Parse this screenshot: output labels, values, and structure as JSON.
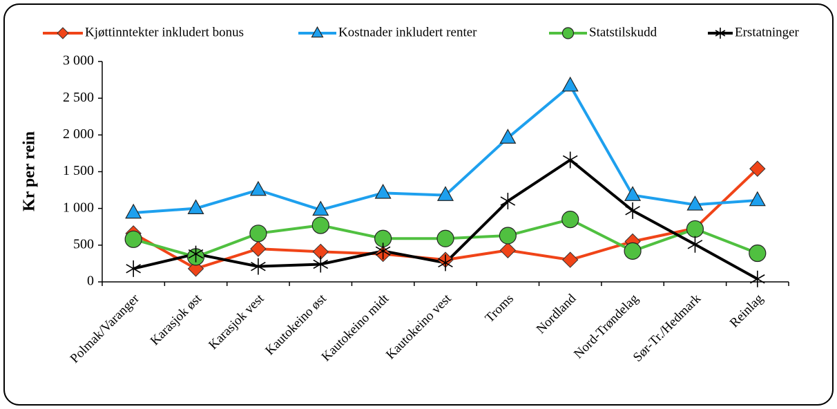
{
  "chart_data": {
    "type": "line",
    "ylabel": "Kr per rein",
    "categories": [
      "Polmak/Varanger",
      "Karasjok øst",
      "Karasjok vest",
      "Kautokeino øst",
      "Kautokeino midt",
      "Kautokeino vest",
      "Troms",
      "Nordland",
      "Nord-Trøndelag",
      "Sør-Tr./Hedmark",
      "Reinlag"
    ],
    "series": [
      {
        "name": "Kjøttinntekter inkludert bonus",
        "color": "#f04418",
        "marker": "diamond",
        "values": [
          660,
          180,
          450,
          410,
          380,
          300,
          430,
          300,
          550,
          730,
          1540
        ]
      },
      {
        "name": "Kostnader inkludert renter",
        "color": "#1ea0ee",
        "marker": "triangle",
        "values": [
          940,
          1000,
          1250,
          980,
          1210,
          1180,
          1960,
          2670,
          1180,
          1050,
          1110
        ]
      },
      {
        "name": "Statstilskudd",
        "color": "#50c040",
        "marker": "circle",
        "values": [
          580,
          340,
          660,
          770,
          590,
          590,
          630,
          850,
          420,
          720,
          390
        ]
      },
      {
        "name": "Erstatninger",
        "color": "#000000",
        "marker": "star",
        "values": [
          180,
          380,
          210,
          240,
          420,
          260,
          1100,
          1660,
          970,
          510,
          40
        ]
      }
    ],
    "ylim": [
      0,
      3000
    ],
    "yticks": [
      0,
      500,
      {
        "value": 1000,
        "label": "1 000"
      },
      {
        "value": 1500,
        "label": "1 500"
      },
      {
        "value": 2000,
        "label": "2 000"
      },
      {
        "value": 2500,
        "label": "2 500"
      },
      {
        "value": 3000,
        "label": "3 000"
      }
    ],
    "grid": false,
    "legend": "top"
  }
}
